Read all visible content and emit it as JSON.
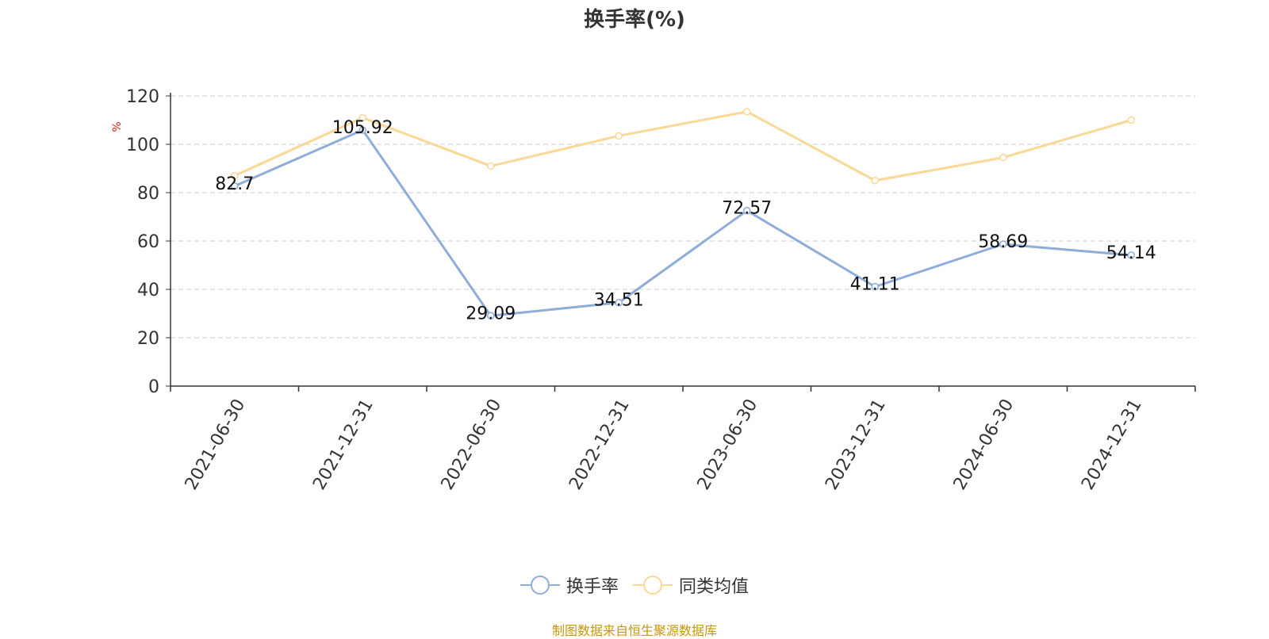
{
  "chart_data": {
    "type": "line",
    "title": "换手率(%)",
    "ylabel": "%",
    "xlabel": "",
    "categories": [
      "2021-06-30",
      "2021-12-31",
      "2022-06-30",
      "2022-12-31",
      "2023-06-30",
      "2023-12-31",
      "2024-06-30",
      "2024-12-31"
    ],
    "series": [
      {
        "name": "换手率",
        "values": [
          82.7,
          105.92,
          29.09,
          34.51,
          72.57,
          41.11,
          58.69,
          54.14
        ],
        "color": "#8eadd9",
        "show_labels": true
      },
      {
        "name": "同类均值",
        "values": [
          87,
          111,
          91,
          103.5,
          113.5,
          85,
          94.5,
          110
        ],
        "color": "#fad896",
        "show_labels": false
      }
    ],
    "ylim": [
      0,
      120
    ],
    "yticks": [
      0,
      20,
      40,
      60,
      80,
      100,
      120
    ],
    "grid": true,
    "legend_position": "bottom-center"
  },
  "source_note": "制图数据来自恒生聚源数据库"
}
